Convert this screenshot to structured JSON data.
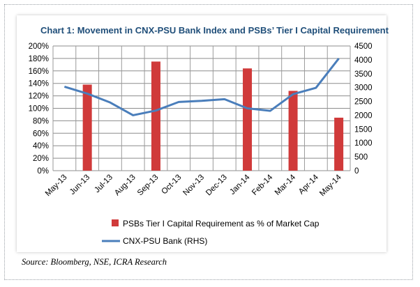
{
  "chart_data": {
    "type": "bar+line",
    "title": "Chart 1: Movement in CNX-PSU Bank Index and PSBs’ Tier I Capital Requirement",
    "categories": [
      "May-13",
      "Jun-13",
      "Jul-13",
      "Aug-13",
      "Sep-13",
      "Oct-13",
      "Nov-13",
      "Dec-13",
      "Jan-14",
      "Feb-14",
      "Mar-14",
      "Apr-14",
      "May-14"
    ],
    "series": [
      {
        "name": "PSBs Tier I Capital Requirement as % of Market Cap",
        "type": "bar",
        "axis": "left",
        "color": "#d03a3a",
        "values": [
          null,
          138,
          null,
          null,
          175,
          null,
          null,
          null,
          164,
          null,
          128,
          null,
          85
        ]
      },
      {
        "name": "CNX-PSU Bank (RHS)",
        "type": "line",
        "axis": "right",
        "color": "#4a7ebb",
        "values": [
          3030,
          2780,
          2460,
          2000,
          2170,
          2480,
          2520,
          2580,
          2250,
          2160,
          2760,
          2990,
          4050
        ]
      }
    ],
    "y_left": {
      "min": 0,
      "max": 200,
      "step": 20,
      "tick_suffix": "%"
    },
    "y_right": {
      "min": 0,
      "max": 4500,
      "step": 500
    },
    "grid": true,
    "legend_position": "bottom"
  },
  "source_text": "Source: Bloomberg, NSE, ICRA Research"
}
